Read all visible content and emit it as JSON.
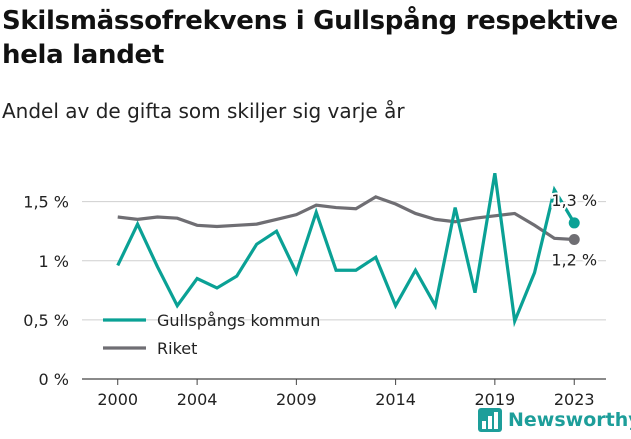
{
  "header": {
    "title": "Skilsmässofrekvens i Gullspång respektive hela landet",
    "subtitle": "Andel av de gifta som skiljer sig varje år"
  },
  "brand": {
    "name": "Newsworthy",
    "icon": "bar-chart-icon",
    "color": "#1d9e9a"
  },
  "chart_data": {
    "type": "line",
    "title": "Skilsmässofrekvens i Gullspång respektive hela landet",
    "subtitle": "Andel av de gifta som skiljer sig varje år",
    "xlabel": "",
    "ylabel": "",
    "x": [
      2000,
      2001,
      2002,
      2003,
      2004,
      2005,
      2006,
      2007,
      2008,
      2009,
      2010,
      2011,
      2012,
      2013,
      2014,
      2015,
      2016,
      2017,
      2018,
      2019,
      2020,
      2021,
      2022,
      2023
    ],
    "xlim": [
      1998.2,
      2024.6
    ],
    "ylim": [
      0,
      1.7
    ],
    "x_ticks": [
      {
        "value": 2000,
        "label": "2000"
      },
      {
        "value": 2004,
        "label": "2004"
      },
      {
        "value": 2009,
        "label": "2009"
      },
      {
        "value": 2014,
        "label": "2014"
      },
      {
        "value": 2019,
        "label": "2019"
      },
      {
        "value": 2023,
        "label": "2023"
      }
    ],
    "y_ticks": [
      {
        "value": 0,
        "label": "0 %"
      },
      {
        "value": 0.5,
        "label": "0,5 %"
      },
      {
        "value": 1,
        "label": "1 %"
      },
      {
        "value": 1.5,
        "label": "1,5 %"
      }
    ],
    "grid": "horizontal",
    "legend": "bottom-left",
    "series": [
      {
        "name": "Gullspångs kommun",
        "color": "#0aa195",
        "values": [
          0.96,
          1.31,
          0.95,
          0.62,
          0.85,
          0.77,
          0.87,
          1.14,
          1.25,
          0.9,
          1.41,
          0.92,
          0.92,
          1.03,
          0.62,
          0.92,
          0.62,
          1.45,
          0.73,
          1.74,
          0.49,
          0.9,
          1.6,
          1.32
        ],
        "end_label": "1,3 %"
      },
      {
        "name": "Riket",
        "color": "#6f6e73",
        "values": [
          1.37,
          1.35,
          1.37,
          1.36,
          1.3,
          1.29,
          1.3,
          1.31,
          1.35,
          1.39,
          1.47,
          1.45,
          1.44,
          1.54,
          1.48,
          1.4,
          1.35,
          1.33,
          1.36,
          1.38,
          1.4,
          1.3,
          1.19,
          1.18
        ],
        "end_label": "1,2 %"
      }
    ]
  }
}
